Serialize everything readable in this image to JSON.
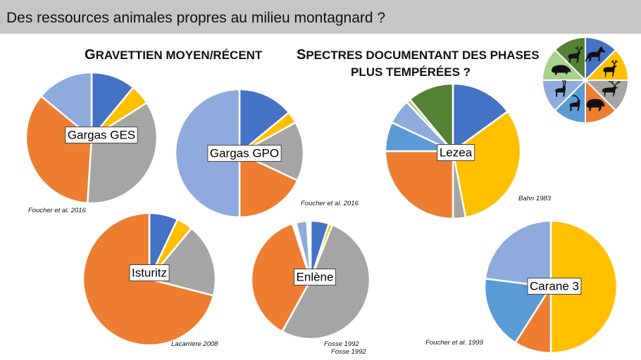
{
  "page": {
    "title": "Des ressources animales propres au milieu montagnard ?",
    "heading_left": {
      "initial": "G",
      "rest": "RAVETTIEN MOYEN/RÉCENT"
    },
    "heading_right_line1": {
      "initial": "S",
      "rest": "PECTRES DOCUMENTANT DES PHASES"
    },
    "heading_right_line2": "PLUS TEMPÉRÉES ?"
  },
  "legend": {
    "colors": [
      "#4472c4",
      "#ffc000",
      "#a5a5a5",
      "#ed7d31",
      "#5b9bd5",
      "#8faadc",
      "#a9d18e",
      "#548235"
    ],
    "icons": [
      "horse-icon",
      "reindeer-icon",
      "caribou-icon",
      "bison-icon",
      "ibex-icon",
      "chamois-icon",
      "boar-icon",
      "red-deer-icon"
    ]
  },
  "chart_data": [
    {
      "type": "pie",
      "name": "Gargas GES",
      "reference": "Foucher et al. 2016",
      "values": [
        11,
        5,
        35,
        35,
        14
      ],
      "colors": [
        "#4472c4",
        "#ffc000",
        "#a5a5a5",
        "#ed7d31",
        "#8faadc"
      ]
    },
    {
      "type": "pie",
      "name": "Gargas GPO",
      "reference": "Foucher et al. 2016",
      "values": [
        14,
        3,
        15,
        18,
        50
      ],
      "colors": [
        "#4472c4",
        "#ffc000",
        "#a5a5a5",
        "#ed7d31",
        "#8faadc"
      ]
    },
    {
      "type": "pie",
      "name": "Lezea",
      "reference": "Bahn 1983",
      "values": [
        15,
        32,
        3,
        25,
        7,
        6,
        1,
        11
      ],
      "colors": [
        "#4472c4",
        "#ffc000",
        "#a5a5a5",
        "#ed7d31",
        "#5b9bd5",
        "#8faadc",
        "#a9d18e",
        "#548235"
      ]
    },
    {
      "type": "pie",
      "name": "Isturitz",
      "reference": "Lacarrière 2008",
      "values": [
        7,
        4,
        18,
        71
      ],
      "colors": [
        "#4472c4",
        "#ffc000",
        "#a5a5a5",
        "#ed7d31"
      ]
    },
    {
      "type": "pie",
      "name": "Enlène",
      "reference": "Fosse 1992",
      "reference2": "Fosse 1992",
      "values": [
        5,
        1,
        52,
        37,
        1,
        3,
        1
      ],
      "colors": [
        "#4472c4",
        "#ffc000",
        "#a5a5a5",
        "#ed7d31",
        "#ffffff",
        "#8faadc",
        "#ffffff"
      ]
    },
    {
      "type": "pie",
      "name": "Carane 3",
      "reference": "Foucher et al. 1999",
      "values": [
        50,
        9,
        18,
        23
      ],
      "colors": [
        "#ffc000",
        "#ed7d31",
        "#5b9bd5",
        "#8faadc"
      ]
    }
  ]
}
